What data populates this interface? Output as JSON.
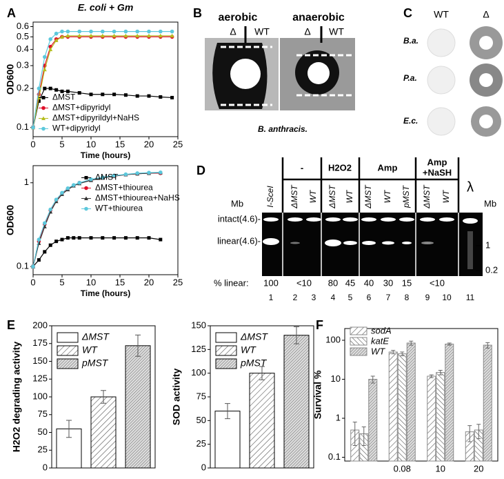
{
  "panel_labels": [
    "A",
    "B",
    "C",
    "D",
    "E",
    "F"
  ],
  "chart_data": [
    {
      "type": "line",
      "title": "E. coli + Gm",
      "xlabel": "Time (hours)",
      "ylabel": "OD600",
      "log_y": true,
      "x": [
        0,
        1,
        2,
        3,
        4,
        5,
        6,
        8,
        10,
        12,
        14,
        16,
        18,
        20,
        22,
        24
      ],
      "xlim": [
        0,
        25
      ],
      "xticks": [
        0,
        5,
        10,
        15,
        20,
        25
      ],
      "ylim": [
        0.085,
        0.65
      ],
      "yticks": [
        0.1,
        0.2,
        0.3,
        0.4,
        0.5,
        0.6
      ],
      "legend": "lower left",
      "series": [
        {
          "name": "ΔMST",
          "color": "#000000",
          "marker": "square",
          "values": [
            0.1,
            0.16,
            0.2,
            0.2,
            0.195,
            0.19,
            0.19,
            0.185,
            0.18,
            0.18,
            0.18,
            0.178,
            0.175,
            0.175,
            0.172,
            0.17
          ]
        },
        {
          "name": "ΔMST+dipyridyl",
          "color": "#e0102a",
          "marker": "circle",
          "values": [
            0.1,
            0.18,
            0.3,
            0.42,
            0.48,
            0.5,
            0.5,
            0.5,
            0.5,
            0.5,
            0.5,
            0.5,
            0.5,
            0.5,
            0.5,
            0.5
          ]
        },
        {
          "name": "ΔMST+dipyrildyl+NaHS",
          "color": "#b5bd1c",
          "marker": "triangle",
          "values": [
            0.1,
            0.17,
            0.28,
            0.4,
            0.47,
            0.5,
            0.51,
            0.51,
            0.51,
            0.51,
            0.51,
            0.51,
            0.51,
            0.51,
            0.51,
            0.51
          ]
        },
        {
          "name": "WT+dipyridyl",
          "color": "#5cc8dc",
          "marker": "circle",
          "values": [
            0.1,
            0.2,
            0.35,
            0.48,
            0.53,
            0.55,
            0.55,
            0.55,
            0.55,
            0.55,
            0.55,
            0.55,
            0.55,
            0.55,
            0.55,
            0.55
          ]
        }
      ]
    },
    {
      "type": "line",
      "xlabel": "Time (hours)",
      "ylabel": "OD600",
      "log_y": true,
      "x": [
        0,
        1,
        2,
        3,
        4,
        5,
        6,
        7,
        8,
        10,
        12,
        14,
        16,
        18,
        20,
        22
      ],
      "xlim": [
        0,
        25
      ],
      "xticks": [
        0,
        5,
        10,
        15,
        20,
        25
      ],
      "ylim": [
        0.08,
        1.6
      ],
      "yticks": [
        0.1,
        1
      ],
      "legend": "upper right",
      "series": [
        {
          "name": "ΔMST",
          "color": "#000000",
          "marker": "square",
          "values": [
            0.1,
            0.12,
            0.15,
            0.18,
            0.2,
            0.21,
            0.22,
            0.22,
            0.22,
            0.22,
            0.22,
            0.22,
            0.22,
            0.22,
            0.22,
            0.21
          ]
        },
        {
          "name": "ΔMST+thiourea",
          "color": "#e0102a",
          "marker": "circle",
          "values": [
            0.1,
            0.2,
            0.32,
            0.47,
            0.62,
            0.75,
            0.85,
            0.93,
            1.0,
            1.08,
            1.15,
            1.2,
            1.25,
            1.28,
            1.3,
            1.3
          ]
        },
        {
          "name": "ΔMST+thiourea+NaHS",
          "color": "#333333",
          "marker": "triangle",
          "values": [
            0.1,
            0.19,
            0.3,
            0.45,
            0.6,
            0.73,
            0.83,
            0.92,
            0.98,
            1.07,
            1.14,
            1.2,
            1.25,
            1.28,
            1.3,
            1.32
          ]
        },
        {
          "name": "WT+thiourea",
          "color": "#5cc8dc",
          "marker": "circle",
          "values": [
            0.1,
            0.21,
            0.33,
            0.48,
            0.63,
            0.76,
            0.86,
            0.94,
            1.0,
            1.1,
            1.16,
            1.22,
            1.26,
            1.3,
            1.32,
            1.33
          ]
        }
      ]
    },
    {
      "type": "bar",
      "ylabel": "H2O2 degrading activity",
      "categories": [
        "ΔMST",
        "WT",
        "pMST"
      ],
      "values": [
        55,
        100,
        172
      ],
      "errors": [
        12,
        9,
        15
      ],
      "patterns": [
        "white",
        "hatch",
        "dense"
      ],
      "ylim": [
        0,
        200
      ],
      "yticks": [
        0,
        25,
        50,
        75,
        100,
        125,
        150,
        175,
        200
      ],
      "legend": "upper left"
    },
    {
      "type": "bar",
      "ylabel": "SOD activity",
      "categories": [
        "ΔMST",
        "WT",
        "pMST"
      ],
      "values": [
        60,
        100,
        140
      ],
      "errors": [
        8,
        7,
        9
      ],
      "patterns": [
        "white",
        "hatch",
        "dense"
      ],
      "ylim": [
        0,
        150
      ],
      "yticks": [
        0,
        25,
        50,
        75,
        100,
        125,
        150
      ],
      "legend": "upper left"
    },
    {
      "type": "grouped_bar",
      "ylabel": "Survival %",
      "log_y": true,
      "categories": [
        null,
        "0.08",
        "10",
        "20"
      ],
      "ylim": [
        0.08,
        200
      ],
      "yticks": [
        0.1,
        1,
        10,
        100
      ],
      "legend": "upper left",
      "series": [
        {
          "name": "sodA",
          "pattern": "hatch",
          "values": [
            0.5,
            50,
            12,
            0.45
          ],
          "errors": [
            0.3,
            5,
            1,
            0.2
          ]
        },
        {
          "name": "katE",
          "pattern": "hatch-back",
          "values": [
            0.4,
            45,
            15,
            0.5
          ],
          "errors": [
            0.2,
            5,
            2,
            0.2
          ]
        },
        {
          "name": "WT",
          "pattern": "dense",
          "values": [
            10,
            85,
            80,
            75
          ],
          "errors": [
            2,
            10,
            5,
            12
          ]
        }
      ]
    }
  ],
  "panel_b": {
    "conditions": [
      "aerobic",
      "anaerobic"
    ],
    "strains": [
      "Δ",
      "WT",
      "Δ",
      "WT"
    ],
    "caption": "B. anthracis."
  },
  "panel_c": {
    "columns": [
      "WT",
      "Δ"
    ],
    "rows": [
      "B.a.",
      "P.a.",
      "E.c."
    ]
  },
  "panel_d": {
    "groups": [
      [
        "-"
      ],
      [
        "H2O2"
      ],
      [
        "Amp"
      ],
      [
        "Amp",
        "+NaSH"
      ]
    ],
    "lanes": [
      "I-SceI",
      "ΔMST",
      "WT",
      "ΔMST",
      "WT",
      "ΔMST",
      "WT",
      "pMST",
      "ΔMST",
      "WT",
      "λ"
    ],
    "unit_left": "Mb",
    "unit_right": "Mb",
    "bands": [
      "intact(4.6)-",
      "linear(4.6)-"
    ],
    "ladder": [
      "1",
      "0.2"
    ],
    "percent_label": "% linear:",
    "percent": [
      "100",
      "<10",
      "80",
      "45",
      "40",
      "30",
      "15",
      "<10"
    ],
    "lane_numbers": [
      1,
      2,
      3,
      4,
      5,
      6,
      7,
      8,
      9,
      10,
      11
    ]
  }
}
